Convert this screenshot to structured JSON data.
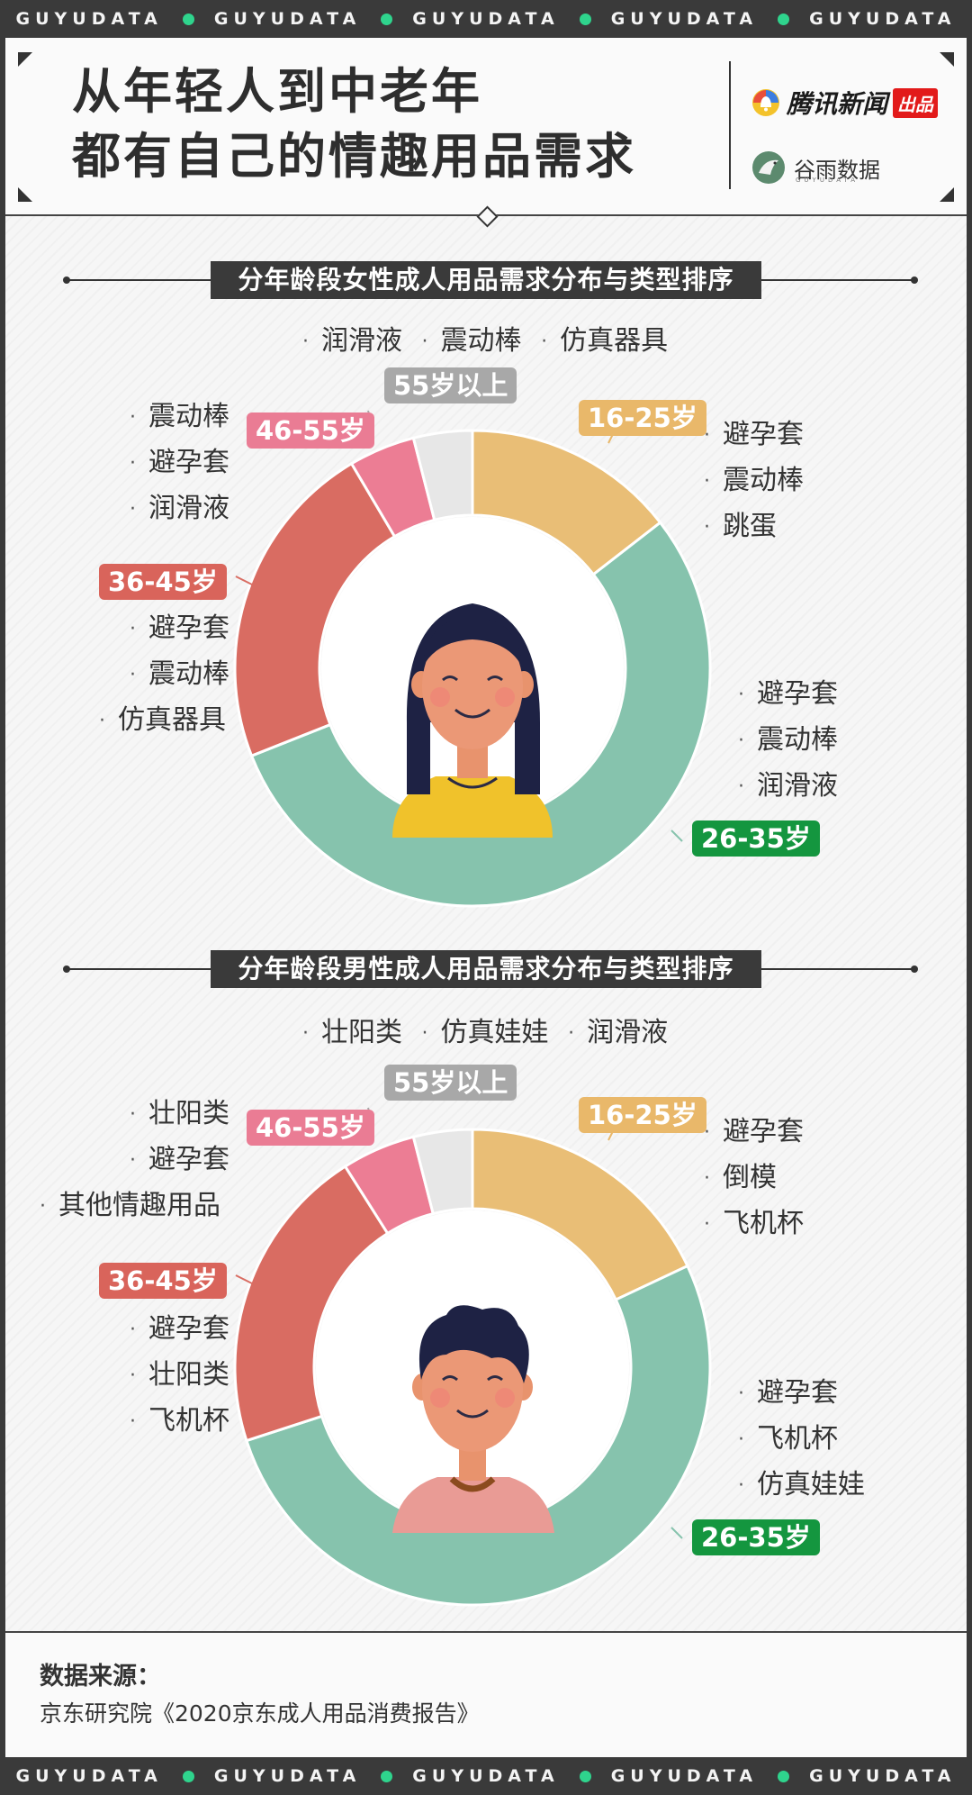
{
  "band_text": "GUYUDATA",
  "header": {
    "title_line1": "从年轻人到中老年",
    "title_line2": "都有自己的情趣用品需求",
    "logo1_text": "腾讯新闻",
    "logo1_badge": "出品",
    "logo2_text": "谷雨数据",
    "logo2_sub": "GUYUDATA"
  },
  "colors": {
    "16-25": "#e9be76",
    "26-35": "#86c3ad",
    "36-45": "#d96c62",
    "46-55": "#ec7d94",
    "55+": "#e7e7e7"
  },
  "chart_data": [
    {
      "type": "pie",
      "title": "分年龄段女性成人用品需求分布与类型排序",
      "categories": [
        "16-25岁",
        "26-35岁",
        "36-45岁",
        "46-55岁",
        "55岁以上"
      ],
      "values": [
        14.5,
        54.5,
        22.5,
        4.5,
        4.0
      ],
      "items": {
        "16-25岁": [
          "避孕套",
          "震动棒",
          "跳蛋"
        ],
        "26-35岁": [
          "避孕套",
          "震动棒",
          "润滑液"
        ],
        "36-45岁": [
          "避孕套",
          "震动棒",
          "仿真器具"
        ],
        "46-55岁": [
          "震动棒",
          "避孕套",
          "润滑液"
        ],
        "55岁以上": [
          "润滑液",
          "震动棒",
          "仿真器具"
        ]
      }
    },
    {
      "type": "pie",
      "title": "分年龄段男性成人用品需求分布与类型排序",
      "categories": [
        "16-25岁",
        "26-35岁",
        "36-45岁",
        "46-55岁",
        "55岁以上"
      ],
      "values": [
        18.0,
        52.0,
        21.0,
        5.0,
        4.0
      ],
      "items": {
        "16-25岁": [
          "避孕套",
          "倒模",
          "飞机杯"
        ],
        "26-35岁": [
          "避孕套",
          "飞机杯",
          "仿真娃娃"
        ],
        "36-45岁": [
          "避孕套",
          "壮阳类",
          "飞机杯"
        ],
        "46-55岁": [
          "壮阳类",
          "避孕套",
          "其他情趣用品"
        ],
        "55岁以上": [
          "壮阳类",
          "仿真娃娃",
          "润滑液"
        ]
      }
    }
  ],
  "footer": {
    "source_heading": "数据来源：",
    "source_text": "京东研究院《2020京东成人用品消费报告》"
  }
}
